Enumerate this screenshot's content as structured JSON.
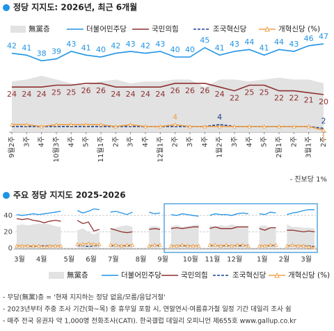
{
  "chart_data": [
    {
      "type": "line",
      "title": "정당 지지도: 2026년, 최근 6개월",
      "categories": [
        "9월2주",
        "3주",
        "4주",
        "10월3주",
        "4주",
        "5주",
        "11월1주",
        "2주",
        "3주",
        "4주",
        "12월1주",
        "2주",
        "3주",
        "4주",
        "1월2주",
        "3주",
        "4주",
        "5주",
        "2월1주",
        "2주",
        "3월1주",
        "2주"
      ],
      "ylim": [
        0,
        50
      ],
      "series": [
        {
          "name": "無黨층",
          "color": "#e2e2e2",
          "style": "area",
          "values": [
            27,
            28,
            30,
            28,
            26,
            25,
            27,
            28,
            26,
            27,
            27,
            28,
            28,
            24,
            28,
            28,
            27,
            28,
            29,
            28,
            28,
            26
          ]
        },
        {
          "name": "더불어민주당",
          "color": "#1f93e6",
          "style": "solid",
          "values": [
            42,
            41,
            38,
            39,
            43,
            41,
            40,
            42,
            43,
            42,
            43,
            40,
            40,
            45,
            41,
            43,
            44,
            41,
            44,
            43,
            46,
            47
          ],
          "value_labels": [
            "42",
            "41",
            "38",
            "39",
            "43",
            "41",
            "40",
            "42",
            "43",
            "42",
            "43",
            "40",
            "40",
            "45",
            "41",
            "43",
            "44",
            "41",
            "44",
            "43",
            "46",
            "47"
          ]
        },
        {
          "name": "국민의힘",
          "color": "#8e2f2f",
          "style": "solid",
          "values": [
            24,
            24,
            24,
            25,
            25,
            26,
            26,
            24,
            24,
            24,
            24,
            26,
            26,
            26,
            24,
            22,
            25,
            25,
            22,
            22,
            21,
            20
          ],
          "value_labels": [
            "24",
            "24",
            "24",
            "25",
            "25",
            "26",
            "26",
            "24",
            "24",
            "24",
            "24",
            "26",
            "26",
            "26",
            "24",
            "22",
            "25",
            "25",
            "22",
            "22",
            "21",
            "20"
          ]
        },
        {
          "name": "조국혁신당",
          "color": "#1d3f8f",
          "style": "dashed",
          "values": [
            3,
            3,
            3,
            3,
            3,
            3,
            3,
            3,
            3,
            3,
            3,
            3,
            3,
            3,
            4,
            3,
            3,
            3,
            3,
            3,
            3,
            2
          ],
          "value_labels": [
            null,
            null,
            null,
            null,
            null,
            null,
            null,
            null,
            null,
            null,
            null,
            null,
            null,
            null,
            "4",
            null,
            null,
            null,
            null,
            null,
            null,
            "2"
          ]
        },
        {
          "name": "개혁신당 (%)",
          "color": "#f0a046",
          "style": "solid",
          "marker": "triangle",
          "values": [
            4,
            4,
            3,
            4,
            4,
            4,
            4,
            3,
            4,
            3,
            3,
            4,
            3,
            3,
            3,
            3,
            3,
            3,
            3,
            3,
            3,
            1
          ],
          "value_labels": [
            null,
            null,
            null,
            null,
            null,
            null,
            null,
            null,
            null,
            null,
            null,
            "4",
            null,
            null,
            null,
            null,
            null,
            null,
            null,
            null,
            null,
            "1"
          ]
        }
      ],
      "note": "- 진보당 1%"
    },
    {
      "type": "line",
      "title": "주요 정당 지지도 2025-2026",
      "categories": [
        "3월",
        null,
        null,
        null,
        "4월",
        null,
        null,
        null,
        null,
        "5월",
        null,
        null,
        null,
        "6월",
        null,
        null,
        null,
        "7월",
        null,
        null,
        null,
        null,
        "8월",
        null,
        null,
        null,
        "9월",
        null,
        null,
        null,
        null,
        "10월",
        null,
        null,
        null,
        "11월",
        null,
        null,
        null,
        "12월",
        null,
        null,
        null,
        null,
        "1월",
        null,
        null,
        null,
        "2월",
        null,
        null,
        null,
        "3월",
        null,
        null
      ],
      "ylim": [
        0,
        50
      ],
      "yticks": [
        0,
        20,
        40
      ],
      "grid": true,
      "series": [
        {
          "name": "無黨층",
          "color": "#e2e2e2",
          "style": "area",
          "values": [
            28,
            29,
            28,
            29,
            30,
            30,
            29,
            27,
            26,
            null,
            null,
            22,
            24,
            20,
            17,
            20,
            null,
            24,
            25,
            27,
            28,
            26,
            null,
            null,
            26,
            27,
            26,
            null,
            27,
            28,
            26,
            27,
            28,
            29,
            null,
            28,
            26,
            28,
            27,
            29,
            27,
            26,
            26,
            null,
            27,
            28,
            25,
            25,
            null,
            29,
            26,
            26,
            25,
            25,
            24
          ]
        },
        {
          "name": "더불어민주당",
          "color": "#1f93e6",
          "style": "solid",
          "values": [
            41,
            40,
            41,
            42,
            41,
            42,
            43,
            44,
            45,
            null,
            null,
            46,
            43,
            45,
            48,
            47,
            null,
            44,
            45,
            43,
            41,
            44,
            null,
            null,
            44,
            42,
            43,
            null,
            41,
            40,
            42,
            41,
            40,
            39,
            null,
            40,
            42,
            41,
            41,
            40,
            42,
            43,
            42,
            null,
            42,
            41,
            44,
            43,
            null,
            41,
            43,
            44,
            46,
            47,
            47
          ]
        },
        {
          "name": "국민의힘",
          "color": "#8e2f2f",
          "style": "solid",
          "values": [
            36,
            35,
            36,
            34,
            33,
            31,
            33,
            34,
            33,
            null,
            null,
            34,
            30,
            32,
            21,
            23,
            null,
            24,
            22,
            20,
            19,
            20,
            null,
            null,
            23,
            24,
            23,
            null,
            24,
            25,
            24,
            25,
            26,
            26,
            null,
            24,
            26,
            24,
            24,
            24,
            26,
            26,
            26,
            null,
            24,
            22,
            25,
            25,
            null,
            22,
            22,
            21,
            20,
            21,
            20
          ]
        },
        {
          "name": "조국혁신당",
          "color": "#1d3f8f",
          "style": "dashed",
          "values": [
            3,
            3,
            3,
            2,
            3,
            3,
            3,
            3,
            3,
            null,
            null,
            3,
            3,
            2,
            3,
            3,
            null,
            3,
            3,
            3,
            3,
            3,
            null,
            null,
            3,
            3,
            3,
            null,
            3,
            3,
            3,
            3,
            3,
            3,
            null,
            3,
            3,
            3,
            3,
            3,
            3,
            3,
            4,
            null,
            3,
            3,
            3,
            4,
            null,
            3,
            3,
            3,
            3,
            3,
            2
          ]
        },
        {
          "name": "개혁신당 (%)",
          "color": "#f0a046",
          "style": "solid",
          "marker": "triangle",
          "values": [
            3,
            3,
            3,
            3,
            3,
            2,
            3,
            3,
            3,
            null,
            null,
            5,
            5,
            6,
            5,
            5,
            null,
            4,
            4,
            3,
            4,
            4,
            null,
            null,
            3,
            4,
            4,
            null,
            3,
            3,
            4,
            3,
            3,
            3,
            null,
            4,
            4,
            3,
            4,
            3,
            4,
            4,
            3,
            null,
            3,
            3,
            4,
            4,
            null,
            3,
            4,
            3,
            3,
            2,
            1
          ]
        }
      ]
    }
  ],
  "footnotes": [
    "- 무당(無黨)층 = '현재 지지하는 정당 없음/모름/응답거절'",
    "- 2023년부터 주중 조사 기간(화~목) 중 휴무일 포함 시, 연말연시·여름휴가철 일정 기간 데일리 조사 쉼",
    "- 매주 전국 유권자 약 1,000명 전화조사(CATI). 한국갤럽 데일리 오피니언 제655호 www.gallup.co.kr"
  ]
}
